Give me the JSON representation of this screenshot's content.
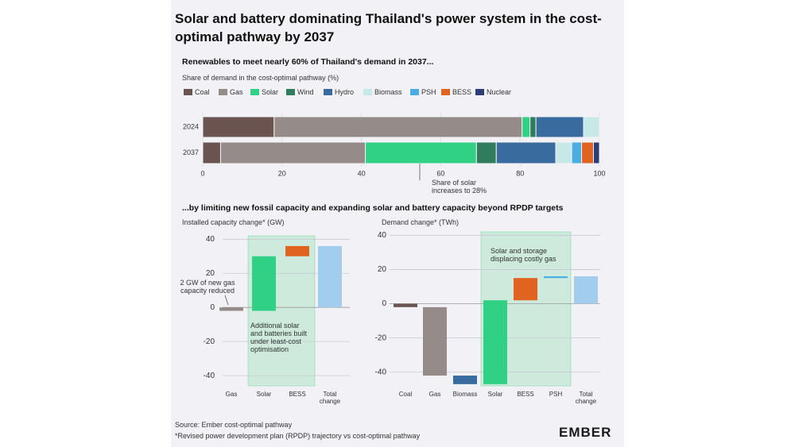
{
  "title": "Solar and battery dominating Thailand's power system in the cost-optimal pathway by 2037",
  "heading": "...by limiting new fossil capacity and expanding solar and battery capacity beyond RPDP targets",
  "chart_data": [
    {
      "type": "stacked-hbar",
      "title": "Renewables to meet nearly 60% of Thailand's demand in 2037...",
      "xlabel": "Share of demand in the cost-optimal pathway (%)",
      "categories": [
        "2024",
        "2037"
      ],
      "series": [
        {
          "name": "Coal",
          "color": "#6b5450",
          "values": [
            18,
            4.5
          ]
        },
        {
          "name": "Gas",
          "color": "#958b88",
          "values": [
            62.5,
            36.5
          ]
        },
        {
          "name": "Solar",
          "color": "#30d185",
          "values": [
            2,
            28
          ]
        },
        {
          "name": "Wind",
          "color": "#2f7d5c",
          "values": [
            1.5,
            5
          ]
        },
        {
          "name": "Hydro",
          "color": "#3a6b9e",
          "values": [
            12,
            15
          ]
        },
        {
          "name": "Biomass",
          "color": "#c6e9e8",
          "values": [
            4,
            4
          ]
        },
        {
          "name": "PSH",
          "color": "#4aaee2",
          "values": [
            0,
            2.5
          ]
        },
        {
          "name": "BESS",
          "color": "#e0631f",
          "values": [
            0,
            3
          ]
        },
        {
          "name": "Nuclear",
          "color": "#2c3d7a",
          "values": [
            0,
            1.5
          ]
        }
      ],
      "xlim": [
        0,
        100
      ],
      "xticks": [
        0,
        20,
        40,
        60,
        80,
        100
      ],
      "grid": true,
      "annotation": "Share of solar increases to 28%"
    },
    {
      "type": "waterfall",
      "title": "Installed capacity change* (GW)",
      "categories": [
        "Gas",
        "Solar",
        "BESS",
        "Total change"
      ],
      "values": [
        -2,
        32,
        6,
        36
      ],
      "colors": [
        "#958b88",
        "#30d185",
        "#e0631f",
        "#a3cdec"
      ],
      "ylim": [
        -46,
        42
      ],
      "yticks": [
        -40,
        -20,
        0,
        20,
        40
      ],
      "grid": true,
      "annotations": [
        "2 GW of new gas capacity reduced",
        "Additional solar and batteries built under least-cost optimisation"
      ]
    },
    {
      "type": "waterfall",
      "title": "Demand change* (TWh)",
      "categories": [
        "Coal",
        "Gas",
        "Biomass",
        "Solar",
        "BESS",
        "PSH",
        "Total change"
      ],
      "values": [
        -2,
        -40,
        -5,
        49,
        13,
        1,
        16
      ],
      "colors": [
        "#6b5450",
        "#958b88",
        "#3a6b9e",
        "#30d185",
        "#e0631f",
        "#4aaee2",
        "#a3cdec"
      ],
      "ylim": [
        -48,
        42
      ],
      "yticks": [
        -40,
        -20,
        0,
        20,
        40
      ],
      "grid": true,
      "annotations": [
        "Solar and storage displacing costly gas"
      ]
    }
  ],
  "source": "Source: Ember cost-optimal pathway",
  "footnote": "*Revised power development plan (RPDP) trajectory vs cost-optimal pathway",
  "logo": "EMBER"
}
